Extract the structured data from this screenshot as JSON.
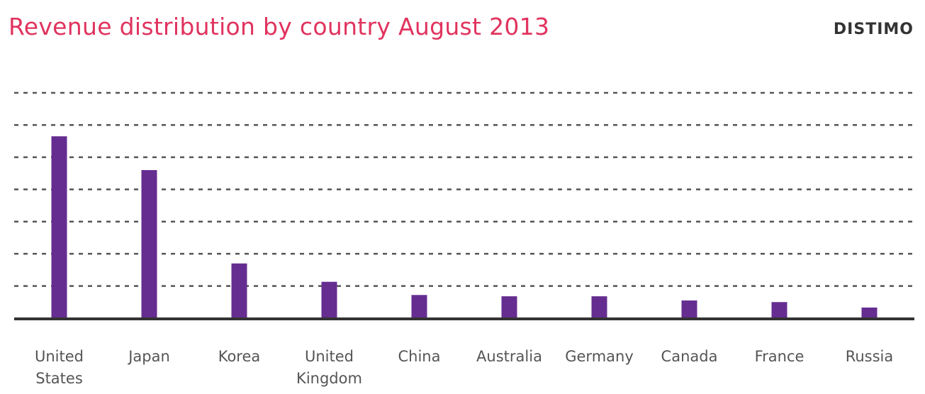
{
  "header": {
    "title": "Revenue distribution by country  August 2013",
    "brand": "DISTIMO"
  },
  "chart_data": {
    "type": "bar",
    "title": "Revenue distribution by country  August 2013",
    "categories": [
      "United States",
      "Japan",
      "Korea",
      "United Kingdom",
      "China",
      "Australia",
      "Germany",
      "Canada",
      "France",
      "Russia"
    ],
    "category_label_lines": [
      [
        "United",
        "States"
      ],
      [
        "Japan"
      ],
      [
        "Korea"
      ],
      [
        "United",
        "Kingdom"
      ],
      [
        "China"
      ],
      [
        "Australia"
      ],
      [
        "Germany"
      ],
      [
        "Canada"
      ],
      [
        "France"
      ],
      [
        "Russia"
      ]
    ],
    "values": [
      5.65,
      4.6,
      1.7,
      1.13,
      0.72,
      0.68,
      0.68,
      0.55,
      0.5,
      0.33
    ],
    "ylim": [
      0,
      7
    ],
    "gridlines": [
      1,
      2,
      3,
      4,
      5,
      6,
      7
    ],
    "grid": true,
    "xlabel": "",
    "ylabel": "",
    "colors": {
      "bar": "#662d91",
      "title": "#e0335e",
      "grid": "#555555",
      "axis": "#333333",
      "label": "#555555"
    }
  }
}
